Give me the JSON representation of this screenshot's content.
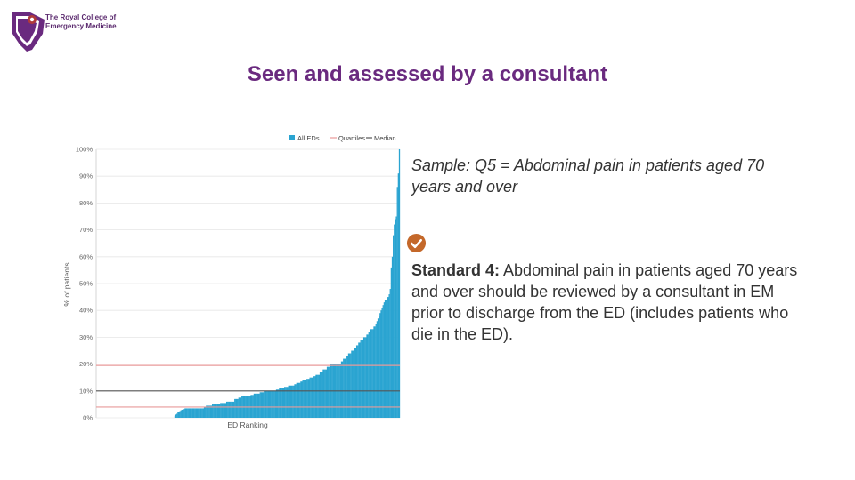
{
  "logo": {
    "text_line1": "The Royal College of",
    "text_line2": "Emergency Medicine",
    "colors": {
      "primary": "#6a2a7f",
      "accent": "#b03a3a"
    }
  },
  "slide": {
    "title": "Seen and assessed by a consultant",
    "sample": "Sample: Q5 = Abdominal pain in patients aged 70 years and over",
    "standard_label": "Standard 4:",
    "standard_text": " Abdominal pain in patients aged 70 years and over should be reviewed by a consultant in EM prior to discharge from the ED (includes patients who die in the ED).",
    "standard_icon": "check-circle-icon",
    "standard_icon_color": "#c4682a"
  },
  "chart_data": {
    "type": "bar",
    "xlabel": "ED Ranking",
    "ylabel": "% of patients",
    "ylim": [
      0,
      100
    ],
    "yticks": [
      0,
      10,
      20,
      30,
      40,
      50,
      60,
      70,
      80,
      90,
      100
    ],
    "ytick_suffix": "%",
    "grid": true,
    "legend": {
      "position": "top-right",
      "entries": [
        {
          "label": "All EDs",
          "style": "bar",
          "color": "#2aa4d1"
        },
        {
          "label": "Quartiles",
          "style": "line",
          "color": "#e89a9a"
        },
        {
          "label": "Median",
          "style": "line",
          "color": "#555555"
        }
      ]
    },
    "quartiles": [
      4,
      19.5
    ],
    "median": 10,
    "bar_color": "#2aa4d1",
    "values": [
      0,
      0,
      0,
      0,
      0,
      0,
      0,
      0,
      0,
      0,
      0,
      0,
      0,
      0,
      0,
      0,
      0,
      0,
      0,
      0,
      0,
      0,
      0,
      0,
      0,
      0,
      0,
      0,
      0,
      0,
      0,
      0,
      0,
      0,
      0,
      0,
      0,
      0,
      0,
      0,
      0,
      0,
      0,
      0,
      0,
      0,
      0,
      0,
      0,
      0,
      0,
      0,
      0,
      0,
      0,
      0,
      0,
      0,
      0,
      0,
      0,
      0,
      0,
      0,
      0,
      0,
      0,
      0,
      0,
      0,
      0,
      0,
      0,
      0,
      0,
      0,
      0,
      0.8,
      1.2,
      1.5,
      2,
      2.2,
      2.5,
      2.8,
      3,
      3,
      3.2,
      3.5,
      3.5,
      3.5,
      3.5,
      3.5,
      3.5,
      3.5,
      3.5,
      3.5,
      3.5,
      3.5,
      3.5,
      3.5,
      3.5,
      3.5,
      3.5,
      3.5,
      3.5,
      3.5,
      4,
      4,
      4.5,
      4.5,
      4.5,
      4.5,
      4.5,
      4.5,
      5,
      5,
      5,
      5,
      5,
      5,
      5.2,
      5.2,
      5.5,
      5.5,
      5.5,
      5.5,
      5.5,
      5.5,
      6,
      6,
      6,
      6,
      6,
      6,
      6,
      6,
      7,
      7,
      7,
      7,
      7.5,
      7.5,
      7.5,
      8,
      8,
      8,
      8,
      8,
      8,
      8,
      8,
      8,
      8.5,
      8.5,
      8.5,
      9,
      9,
      9,
      9,
      9,
      9,
      9.5,
      9.5,
      9.5,
      9.5,
      10,
      10,
      10,
      10,
      10,
      10,
      10,
      10,
      10,
      10,
      10,
      10,
      10.5,
      10.5,
      10.5,
      11,
      11,
      11,
      11,
      11,
      11.5,
      11.5,
      11.5,
      11.5,
      12,
      12,
      12,
      12,
      12,
      12,
      12.5,
      12.5,
      13,
      13,
      13,
      13,
      13.5,
      13.5,
      14,
      14,
      14,
      14,
      14.5,
      14.5,
      14.5,
      15,
      15,
      15,
      15,
      15.5,
      15.5,
      16,
      16,
      16,
      16,
      17,
      17,
      17,
      18,
      18,
      18,
      18,
      19,
      19,
      19,
      20,
      20,
      20,
      20,
      20,
      20,
      20,
      20,
      20,
      20,
      20,
      21,
      21,
      22,
      22,
      22,
      23,
      23,
      24,
      24,
      24,
      25,
      25,
      25,
      26,
      26,
      27,
      27,
      28,
      28,
      29,
      29,
      29,
      30,
      30,
      30,
      31,
      31,
      32,
      32,
      33,
      33,
      33,
      34,
      34,
      35,
      36,
      37,
      38,
      39,
      40,
      41,
      42,
      43,
      44,
      44,
      45,
      45,
      46,
      48,
      56,
      60,
      68,
      72,
      74,
      75,
      86,
      91,
      100
    ]
  }
}
